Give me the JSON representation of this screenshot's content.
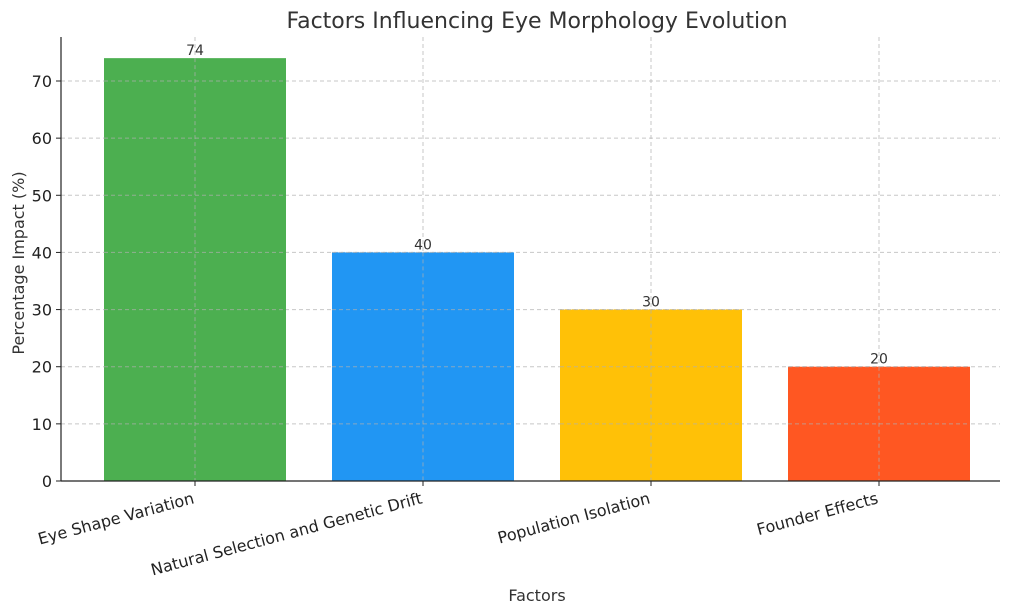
{
  "chart_data": {
    "type": "bar",
    "title": "Factors Influencing Eye Morphology Evolution",
    "xlabel": "Factors",
    "ylabel": "Percentage Impact (%)",
    "categories": [
      "Eye Shape Variation",
      "Natural Selection and Genetic Drift",
      "Population Isolation",
      "Founder Effects"
    ],
    "values": [
      74,
      40,
      30,
      20
    ],
    "value_labels": [
      "74",
      "40",
      "30",
      "20"
    ],
    "colors": [
      "#4caf50",
      "#2196f3",
      "#ffc107",
      "#ff5722"
    ],
    "yticks": [
      0,
      10,
      20,
      30,
      40,
      50,
      60,
      70
    ],
    "ylim": [
      0,
      77.7
    ],
    "grid": true,
    "legend": "none"
  }
}
